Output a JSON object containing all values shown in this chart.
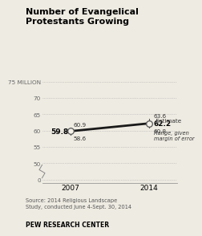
{
  "title": "Number of Evangelical\nProtestants Growing",
  "years": [
    2007,
    2014
  ],
  "estimate_2007": 59.8,
  "estimate_2014": 62.2,
  "high_2007": 60.9,
  "low_2007": 58.6,
  "high_2014": 63.6,
  "low_2014": 60.8,
  "yticks": [
    0,
    50,
    55,
    60,
    65,
    70,
    75
  ],
  "ytick_labels": [
    "0",
    "50",
    "55",
    "60",
    "65",
    "70",
    "75 MILLION"
  ],
  "ylim": [
    -2,
    77
  ],
  "xlim": [
    2004.5,
    2016.5
  ],
  "source_text": "Source: 2014 Religious Landscape\nStudy, conducted June 4-Sept. 30, 2014",
  "footer_text": "PEW RESEARCH CENTER",
  "estimate_label": "Estimate",
  "range_label": "Range, given\nmargin of error",
  "background_color": "#eeebe2",
  "line_color": "#1a1a1a",
  "dot_fill": "#f5f2ea",
  "dot_edge_color": "#555555",
  "grid_color": "#aaaaaa",
  "label_2007_estimate": "59.8",
  "label_2014_estimate": "62.2"
}
